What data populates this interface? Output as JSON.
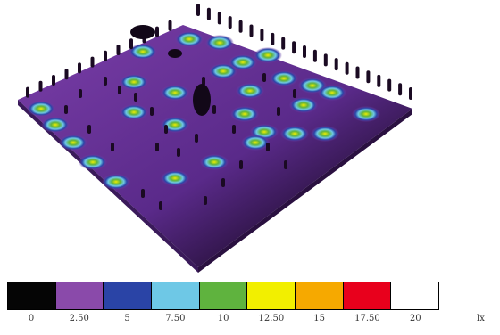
{
  "legend": {
    "colors": [
      "#050505",
      "#8a4aaa",
      "#2a44a6",
      "#6ec8e6",
      "#5fb33e",
      "#f2ef00",
      "#f6a900",
      "#e8001c",
      "#ffffff"
    ],
    "ticks": [
      "0",
      "2.50",
      "5",
      "7.50",
      "10",
      "12.50",
      "15",
      "17.50",
      "20"
    ],
    "unit": "lx"
  },
  "scene": {
    "floor_color": "#5a2a8a",
    "dark_color": "#120818",
    "pool_colors": [
      "#f2ef00",
      "#5fb33e",
      "#6ec8e6",
      "#2a44a6"
    ]
  }
}
